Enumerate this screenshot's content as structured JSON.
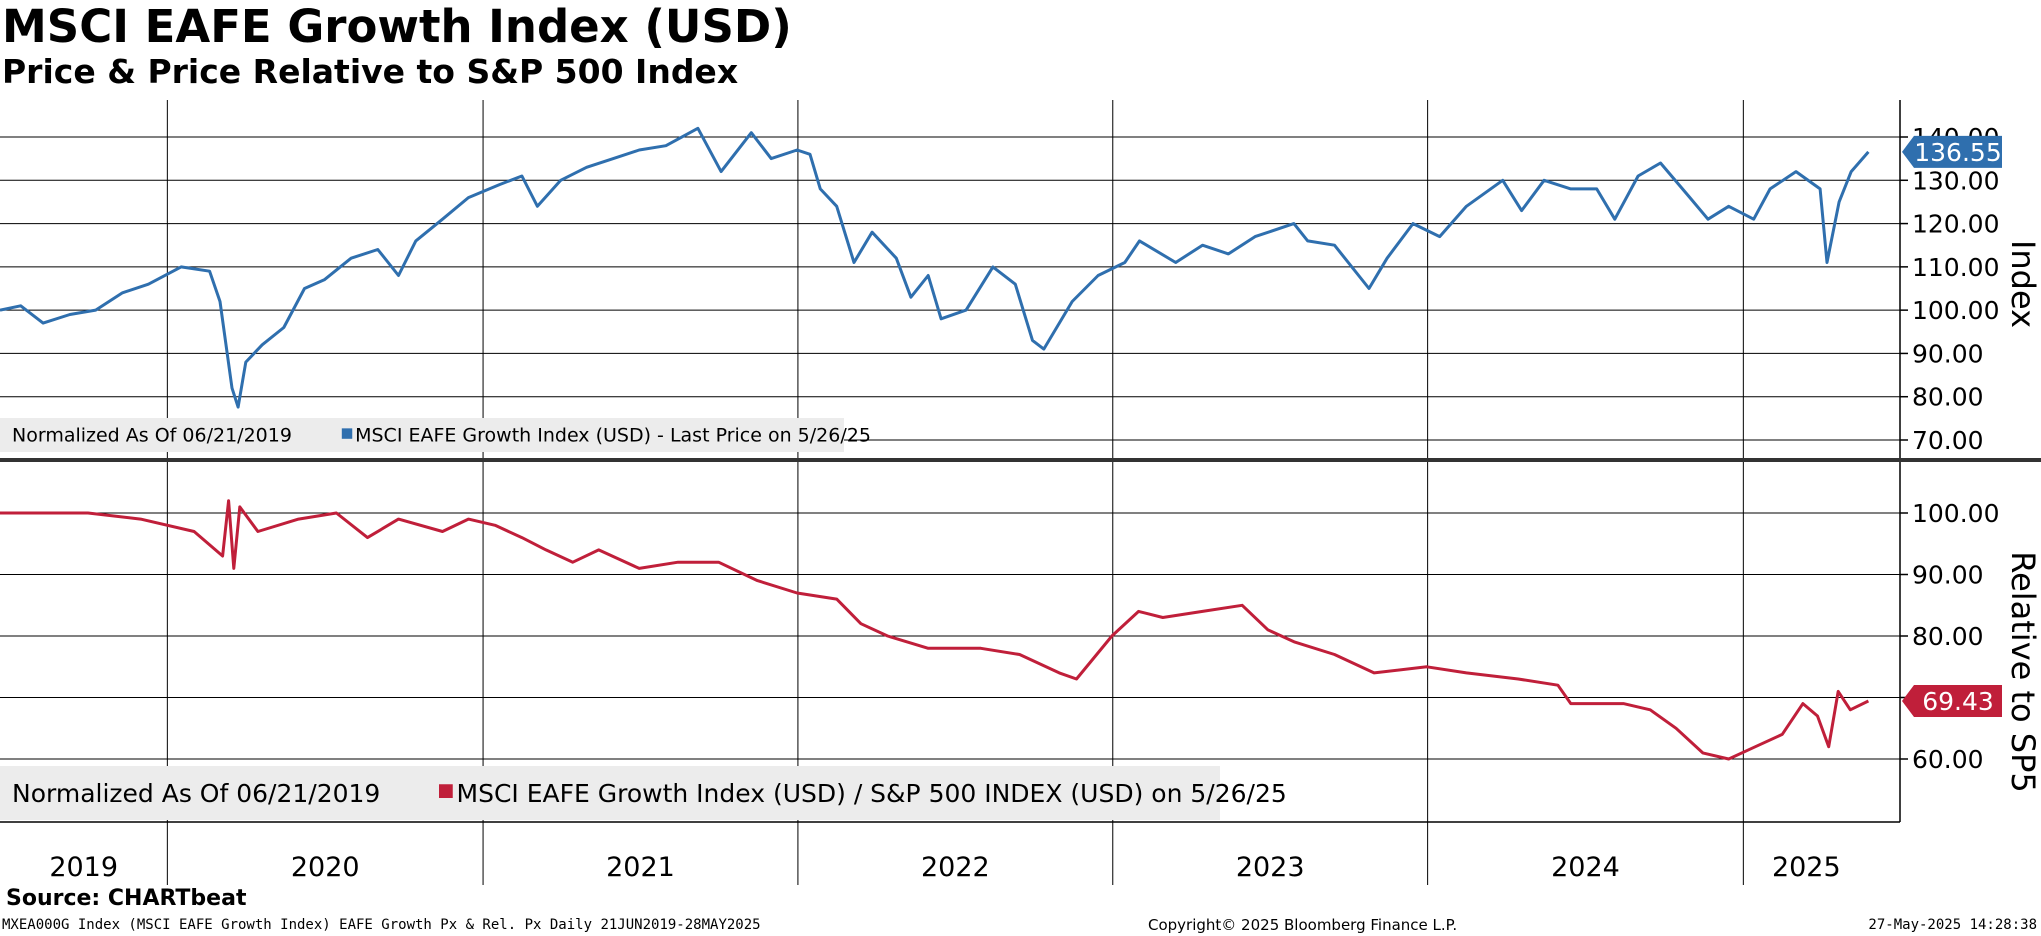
{
  "header": {
    "title": "MSCI EAFE Growth Index (USD)",
    "subtitle": "Price & Price Relative to S&P 500 Index"
  },
  "footer": {
    "source": "Source: CHARTbeat",
    "ticker_line": "MXEA000G Index (MSCI EAFE Growth Index) EAFE Growth Px & Rel. Px  Daily 21JUN2019-28MAY2025",
    "copyright": "Copyright© 2025 Bloomberg Finance L.P.",
    "timestamp": "27-May-2025 14:28:38"
  },
  "colors": {
    "price": "#2f6fae",
    "relative": "#c01f3a",
    "grid": "#000000",
    "legend_bg": "#ececec",
    "divider": "#333333"
  },
  "chart_data": [
    {
      "type": "line",
      "panel": "top",
      "ylabel": "Index",
      "ylim": [
        70,
        140
      ],
      "y_ticks": [
        "70.00",
        "80.00",
        "90.00",
        "100.00",
        "110.00",
        "120.00",
        "130.00",
        "140.00"
      ],
      "legend_note": "Normalized As Of 06/21/2019",
      "series": [
        {
          "name": "MSCI EAFE Growth Index (USD) - Last Price on 5/26/25",
          "last_value_label": "136.55",
          "points": [
            [
              "2019-06-21",
              100
            ],
            [
              "2019-07-15",
              101
            ],
            [
              "2019-08-10",
              97
            ],
            [
              "2019-09-10",
              99
            ],
            [
              "2019-10-10",
              100
            ],
            [
              "2019-11-10",
              104
            ],
            [
              "2019-12-10",
              106
            ],
            [
              "2020-01-17",
              110
            ],
            [
              "2020-02-19",
              109
            ],
            [
              "2020-03-02",
              102
            ],
            [
              "2020-03-16",
              82
            ],
            [
              "2020-03-23",
              77.6
            ],
            [
              "2020-04-01",
              88
            ],
            [
              "2020-04-20",
              92
            ],
            [
              "2020-05-15",
              96
            ],
            [
              "2020-06-08",
              105
            ],
            [
              "2020-07-01",
              107
            ],
            [
              "2020-08-01",
              112
            ],
            [
              "2020-09-01",
              114
            ],
            [
              "2020-09-25",
              108
            ],
            [
              "2020-10-15",
              116
            ],
            [
              "2020-11-15",
              121
            ],
            [
              "2020-12-15",
              126
            ],
            [
              "2021-01-20",
              129
            ],
            [
              "2021-02-15",
              131
            ],
            [
              "2021-03-05",
              124
            ],
            [
              "2021-04-01",
              130
            ],
            [
              "2021-05-01",
              133
            ],
            [
              "2021-06-01",
              135
            ],
            [
              "2021-07-01",
              137
            ],
            [
              "2021-08-01",
              138
            ],
            [
              "2021-09-07",
              142
            ],
            [
              "2021-10-04",
              132
            ],
            [
              "2021-11-08",
              141
            ],
            [
              "2021-12-01",
              135
            ],
            [
              "2021-12-31",
              137
            ],
            [
              "2022-01-15",
              136
            ],
            [
              "2022-01-27",
              128
            ],
            [
              "2022-02-15",
              124
            ],
            [
              "2022-03-07",
              111
            ],
            [
              "2022-03-28",
              118
            ],
            [
              "2022-04-25",
              112
            ],
            [
              "2022-05-12",
              103
            ],
            [
              "2022-06-01",
              108
            ],
            [
              "2022-06-16",
              98
            ],
            [
              "2022-07-15",
              100
            ],
            [
              "2022-08-15",
              110
            ],
            [
              "2022-09-10",
              106
            ],
            [
              "2022-09-30",
              93
            ],
            [
              "2022-10-13",
              91
            ],
            [
              "2022-11-15",
              102
            ],
            [
              "2022-12-15",
              108
            ],
            [
              "2023-01-15",
              111
            ],
            [
              "2023-02-01",
              116
            ],
            [
              "2023-03-15",
              111
            ],
            [
              "2023-04-15",
              115
            ],
            [
              "2023-05-15",
              113
            ],
            [
              "2023-06-15",
              117
            ],
            [
              "2023-07-30",
              120
            ],
            [
              "2023-08-15",
              116
            ],
            [
              "2023-09-15",
              115
            ],
            [
              "2023-10-25",
              105
            ],
            [
              "2023-11-15",
              112
            ],
            [
              "2023-12-15",
              120
            ],
            [
              "2024-01-15",
              117
            ],
            [
              "2024-02-15",
              124
            ],
            [
              "2024-03-28",
              130
            ],
            [
              "2024-04-19",
              123
            ],
            [
              "2024-05-15",
              130
            ],
            [
              "2024-06-15",
              128
            ],
            [
              "2024-07-15",
              128
            ],
            [
              "2024-08-05",
              121
            ],
            [
              "2024-09-01",
              131
            ],
            [
              "2024-09-27",
              134
            ],
            [
              "2024-10-31",
              126
            ],
            [
              "2024-11-21",
              121
            ],
            [
              "2024-12-15",
              124
            ],
            [
              "2025-01-13",
              121
            ],
            [
              "2025-02-01",
              128
            ],
            [
              "2025-03-03",
              132
            ],
            [
              "2025-03-31",
              128
            ],
            [
              "2025-04-08",
              111
            ],
            [
              "2025-04-22",
              125
            ],
            [
              "2025-05-06",
              132
            ],
            [
              "2025-05-26",
              136.55
            ]
          ]
        }
      ]
    },
    {
      "type": "line",
      "panel": "bottom",
      "ylabel": "Relative to SP5",
      "ylim": [
        50,
        105
      ],
      "y_ticks": [
        "60.00",
        "70.00",
        "80.00",
        "90.00",
        "100.00"
      ],
      "legend_note": "Normalized As Of 06/21/2019",
      "series": [
        {
          "name": "MSCI EAFE Growth Index (USD) / S&P 500 INDEX (USD) on 5/26/25",
          "last_value_label": "69.43",
          "points": [
            [
              "2019-06-21",
              100
            ],
            [
              "2019-08-01",
              100
            ],
            [
              "2019-10-01",
              100
            ],
            [
              "2019-12-01",
              99
            ],
            [
              "2020-02-01",
              97
            ],
            [
              "2020-03-05",
              93
            ],
            [
              "2020-03-12",
              102
            ],
            [
              "2020-03-18",
              91
            ],
            [
              "2020-03-25",
              101
            ],
            [
              "2020-04-15",
              97
            ],
            [
              "2020-06-01",
              99
            ],
            [
              "2020-07-15",
              100
            ],
            [
              "2020-08-20",
              96
            ],
            [
              "2020-09-25",
              99
            ],
            [
              "2020-11-15",
              97
            ],
            [
              "2020-12-15",
              99
            ],
            [
              "2021-01-15",
              98
            ],
            [
              "2021-02-15",
              96
            ],
            [
              "2021-03-15",
              94
            ],
            [
              "2021-04-15",
              92
            ],
            [
              "2021-05-15",
              94
            ],
            [
              "2021-07-01",
              91
            ],
            [
              "2021-08-15",
              92
            ],
            [
              "2021-10-01",
              92
            ],
            [
              "2021-11-15",
              89
            ],
            [
              "2021-12-31",
              87
            ],
            [
              "2022-02-15",
              86
            ],
            [
              "2022-03-15",
              82
            ],
            [
              "2022-04-15",
              80
            ],
            [
              "2022-06-01",
              78
            ],
            [
              "2022-08-01",
              78
            ],
            [
              "2022-09-15",
              77
            ],
            [
              "2022-10-31",
              74
            ],
            [
              "2022-11-20",
              73
            ],
            [
              "2022-12-31",
              80
            ],
            [
              "2023-01-31",
              84
            ],
            [
              "2023-02-28",
              83
            ],
            [
              "2023-04-15",
              84
            ],
            [
              "2023-05-31",
              85
            ],
            [
              "2023-06-30",
              81
            ],
            [
              "2023-07-31",
              79
            ],
            [
              "2023-09-15",
              77
            ],
            [
              "2023-10-31",
              74
            ],
            [
              "2023-12-31",
              75
            ],
            [
              "2024-02-15",
              74
            ],
            [
              "2024-04-15",
              73
            ],
            [
              "2024-05-31",
              72
            ],
            [
              "2024-06-15",
              69
            ],
            [
              "2024-08-15",
              69
            ],
            [
              "2024-09-15",
              68
            ],
            [
              "2024-10-15",
              65
            ],
            [
              "2024-11-15",
              61
            ],
            [
              "2024-12-15",
              60
            ],
            [
              "2025-01-15",
              62
            ],
            [
              "2025-02-15",
              64
            ],
            [
              "2025-03-11",
              69
            ],
            [
              "2025-03-28",
              67
            ],
            [
              "2025-04-10",
              62
            ],
            [
              "2025-04-21",
              71
            ],
            [
              "2025-05-05",
              68
            ],
            [
              "2025-05-26",
              69.43
            ]
          ]
        }
      ]
    }
  ],
  "x_axis": {
    "years": [
      "2019",
      "2020",
      "2021",
      "2022",
      "2023",
      "2024",
      "2025"
    ]
  }
}
